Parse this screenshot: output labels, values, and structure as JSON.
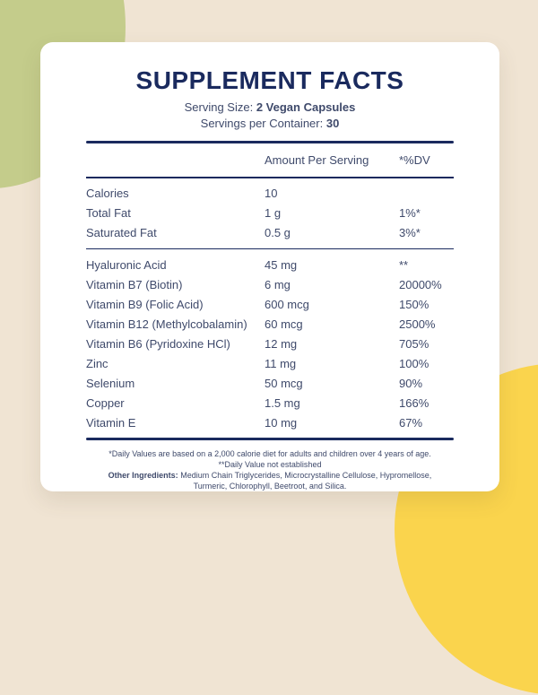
{
  "title": "SUPPLEMENT FACTS",
  "serving": {
    "size_label": "Serving Size:",
    "size_value": "2 Vegan Capsules",
    "container_label": "Servings per Container:",
    "container_value": "30"
  },
  "table": {
    "headers": {
      "amount": "Amount Per Serving",
      "dv": "*%DV"
    },
    "top_rows": [
      {
        "name": "Calories",
        "amount": "10",
        "dv": ""
      },
      {
        "name": "Total Fat",
        "amount": "1 g",
        "dv": "1%*"
      },
      {
        "name": "Saturated Fat",
        "amount": "0.5 g",
        "dv": "3%*"
      }
    ],
    "main_rows": [
      {
        "name": "Hyaluronic Acid",
        "amount": "45 mg",
        "dv": "**"
      },
      {
        "name": "Vitamin B7 (Biotin)",
        "amount": "6 mg",
        "dv": "20000%"
      },
      {
        "name": "Vitamin B9 (Folic Acid)",
        "amount": "600 mcg",
        "dv": "150%"
      },
      {
        "name": "Vitamin B12 (Methylcobalamin)",
        "amount": "60 mcg",
        "dv": "2500%"
      },
      {
        "name": "Vitamin B6 (Pyridoxine HCl)",
        "amount": "12 mg",
        "dv": "705%"
      },
      {
        "name": "Zinc",
        "amount": "11 mg",
        "dv": "100%"
      },
      {
        "name": "Selenium",
        "amount": "50 mcg",
        "dv": "90%"
      },
      {
        "name": "Copper",
        "amount": "1.5 mg",
        "dv": "166%"
      },
      {
        "name": "Vitamin E",
        "amount": "10 mg",
        "dv": "67%"
      }
    ]
  },
  "footnotes": {
    "line1": "*Daily Values are based on a 2,000 calorie diet for adults and children over 4 years of age.",
    "line2": "**Daily Value not established",
    "other_label": "Other Ingredients:",
    "other_value": "Medium Chain Triglycerides, Microcrystalline Cellulose, Hypromellose, Turmeric, Chlorophyll, Beetroot, and Silica."
  },
  "colors": {
    "navy": "#1a2a5e",
    "slate": "#3f4a6b",
    "green": "#c4cc8b",
    "yellow": "#fad44d",
    "beige": "#f0e4d3",
    "card": "#ffffff"
  }
}
